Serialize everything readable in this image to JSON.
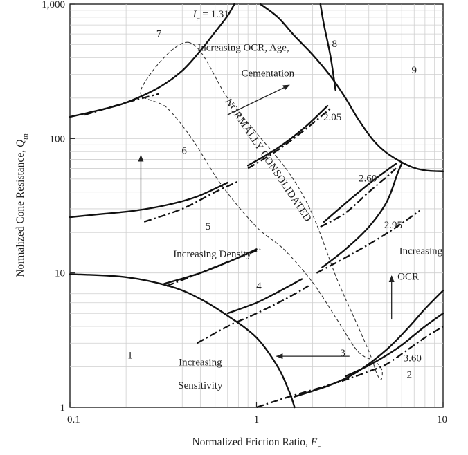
{
  "chart_data": {
    "type": "line",
    "x_scale": "log",
    "y_scale": "log",
    "xlim": [
      0.1,
      10
    ],
    "ylim": [
      1,
      1000
    ],
    "xlabel_text": "Normalized Friction Ratio, ",
    "xlabel_var": "F",
    "xlabel_sub": "r",
    "ylabel_text": "Normalized Cone Resistance, ",
    "ylabel_var": "Q",
    "ylabel_sub": "tn",
    "x_ticks": [
      {
        "value": 0.1,
        "label": "0.1"
      },
      {
        "value": 1,
        "label": "1"
      },
      {
        "value": 10,
        "label": "10"
      }
    ],
    "y_ticks": [
      {
        "value": 1,
        "label": "1"
      },
      {
        "value": 10,
        "label": "10"
      },
      {
        "value": 100,
        "label": "100"
      },
      {
        "value": 1000,
        "label": "1,000"
      }
    ],
    "zones": [
      {
        "label": "1",
        "x": 0.21,
        "y": 2.3
      },
      {
        "label": "2",
        "x": 6.6,
        "y": 1.65
      },
      {
        "label": "3",
        "x": 2.9,
        "y": 2.4
      },
      {
        "label": "4",
        "x": 1.03,
        "y": 7.6
      },
      {
        "label": "5",
        "x": 0.55,
        "y": 21
      },
      {
        "label": "6",
        "x": 0.41,
        "y": 77
      },
      {
        "label": "7",
        "x": 0.3,
        "y": 570
      },
      {
        "label": "8",
        "x": 2.62,
        "y": 480
      },
      {
        "label": "9",
        "x": 7.0,
        "y": 305
      }
    ],
    "ic_symbol": "I",
    "ic_sub": "c",
    "ic_equals": " = 1.31",
    "ic_label_pos": {
      "x": 0.57,
      "y": 800
    },
    "ic_values": [
      {
        "label": "2.05",
        "x": 2.55,
        "y": 137
      },
      {
        "label": "2.60",
        "x": 3.95,
        "y": 48
      },
      {
        "label": "2.95",
        "x": 5.4,
        "y": 21.5
      },
      {
        "label": "3.60",
        "x": 6.85,
        "y": 2.2
      }
    ],
    "annotations": [
      {
        "name": "ocr-age-line1",
        "text": "Increasing OCR, Age,",
        "x": 0.85,
        "y": 450
      },
      {
        "name": "ocr-age-line2",
        "text": "Cementation",
        "x": 1.15,
        "y": 290
      },
      {
        "name": "increasing-density",
        "text": "Increasing Density",
        "x": 0.58,
        "y": 13.1
      },
      {
        "name": "increasing-ocr-line1",
        "text": "Increasing",
        "x": 7.6,
        "y": 13.8
      },
      {
        "name": "increasing-ocr-line2",
        "text": "OCR",
        "x": 6.5,
        "y": 8.9
      },
      {
        "name": "sensitivity-line1",
        "text": "Increasing",
        "x": 0.5,
        "y": 2.05
      },
      {
        "name": "sensitivity-line2",
        "text": "Sensitivity",
        "x": 0.5,
        "y": 1.38
      }
    ],
    "normally_consolidated": {
      "text": "NORMALLY CONSOLIDATED",
      "x": 1.12,
      "y": 67,
      "angle": 56
    },
    "arrows": [
      {
        "name": "ocr-age-arrow",
        "from": [
          0.7,
          150
        ],
        "to": [
          1.5,
          250
        ]
      },
      {
        "name": "density-arrow",
        "from": [
          0.24,
          25
        ],
        "to": [
          0.24,
          75
        ]
      },
      {
        "name": "ocr-arrow",
        "from": [
          5.3,
          4.5
        ],
        "to": [
          5.3,
          9.5
        ]
      },
      {
        "name": "sensitivity-arrow",
        "from": [
          3.15,
          2.4
        ],
        "to": [
          1.28,
          2.4
        ]
      }
    ],
    "boundaries_solid": [
      {
        "name": "boundary-zone1",
        "points": [
          [
            0.1,
            9.8
          ],
          [
            0.2,
            9.3
          ],
          [
            0.35,
            7.9
          ],
          [
            0.5,
            6.4
          ],
          [
            0.7,
            4.8
          ],
          [
            1.0,
            3.3
          ],
          [
            1.3,
            2.0
          ],
          [
            1.5,
            1.3
          ],
          [
            1.6,
            1.0
          ]
        ]
      },
      {
        "name": "boundary-zone7",
        "points": [
          [
            0.1,
            145
          ],
          [
            0.15,
            165
          ],
          [
            0.2,
            185
          ],
          [
            0.3,
            240
          ],
          [
            0.4,
            320
          ],
          [
            0.5,
            450
          ],
          [
            0.6,
            620
          ],
          [
            0.7,
            820
          ],
          [
            0.76,
            1000
          ]
        ]
      },
      {
        "name": "boundary-zone9",
        "points": [
          [
            1.05,
            1000
          ],
          [
            1.3,
            800
          ],
          [
            1.6,
            580
          ],
          [
            2.0,
            420
          ],
          [
            2.5,
            290
          ],
          [
            3.0,
            200
          ],
          [
            3.5,
            140
          ],
          [
            4.2,
            98
          ],
          [
            5.0,
            78
          ],
          [
            6.5,
            63
          ],
          [
            8.0,
            58
          ],
          [
            10.0,
            57
          ]
        ]
      },
      {
        "name": "boundary-zone8",
        "points": [
          [
            2.2,
            1000
          ],
          [
            2.3,
            700
          ],
          [
            2.5,
            400
          ],
          [
            2.65,
            230
          ]
        ]
      },
      {
        "name": "boundary-zone2",
        "points": [
          [
            1.6,
            1.2
          ],
          [
            2.5,
            1.47
          ],
          [
            3.5,
            1.85
          ],
          [
            5.0,
            2.7
          ],
          [
            6.5,
            3.9
          ],
          [
            8.0,
            5.4
          ],
          [
            10.0,
            7.4
          ]
        ]
      },
      {
        "name": "ic-205-upper",
        "points": [
          [
            0.9,
            63
          ],
          [
            1.3,
            85
          ],
          [
            1.8,
            120
          ],
          [
            2.4,
            175
          ]
        ]
      },
      {
        "name": "ic-205-lower",
        "points": [
          [
            0.1,
            26
          ],
          [
            0.15,
            27.5
          ],
          [
            0.22,
            29
          ],
          [
            0.33,
            32
          ],
          [
            0.48,
            37
          ],
          [
            0.7,
            47
          ]
        ]
      },
      {
        "name": "ic-260-upper",
        "points": [
          [
            2.3,
            24
          ],
          [
            3.0,
            33
          ],
          [
            4.0,
            46
          ],
          [
            5.0,
            58
          ],
          [
            5.6,
            65
          ]
        ]
      },
      {
        "name": "ic-260-lower",
        "points": [
          [
            0.32,
            8.3
          ],
          [
            0.5,
            10
          ],
          [
            0.75,
            12.5
          ],
          [
            1.0,
            15
          ]
        ]
      },
      {
        "name": "ic-295-upper",
        "points": [
          [
            2.25,
            11
          ],
          [
            3.0,
            15
          ],
          [
            4.0,
            22
          ],
          [
            5.0,
            34
          ],
          [
            5.7,
            55
          ],
          [
            6.0,
            65
          ]
        ]
      },
      {
        "name": "ic-295-lower",
        "points": [
          [
            0.7,
            5.0
          ],
          [
            1.0,
            6.0
          ],
          [
            1.3,
            7.2
          ],
          [
            1.75,
            9.0
          ]
        ]
      },
      {
        "name": "ic-360-upper",
        "points": [
          [
            3.0,
            1.7
          ],
          [
            4.0,
            2.05
          ],
          [
            5.0,
            2.45
          ],
          [
            6.0,
            2.9
          ],
          [
            7.0,
            3.45
          ],
          [
            8.0,
            4.0
          ],
          [
            10.0,
            5.0
          ]
        ]
      }
    ],
    "boundaries_dashdot": [
      {
        "name": "ic-205-dashdot-upper",
        "points": [
          [
            0.12,
            150
          ],
          [
            0.2,
            185
          ],
          [
            0.3,
            215
          ]
        ]
      },
      {
        "name": "ic-205-dashdot-lower",
        "points": [
          [
            0.9,
            60
          ],
          [
            1.3,
            82
          ],
          [
            1.8,
            115
          ],
          [
            2.5,
            168
          ]
        ]
      },
      {
        "name": "ic-260-dashdot-upper",
        "points": [
          [
            0.25,
            24
          ],
          [
            0.4,
            30
          ],
          [
            0.6,
            40
          ],
          [
            0.8,
            48
          ]
        ]
      },
      {
        "name": "ic-260-dashdot-lower",
        "points": [
          [
            2.2,
            22
          ],
          [
            3.0,
            28
          ],
          [
            4.0,
            40
          ],
          [
            5.0,
            52
          ],
          [
            5.6,
            60
          ]
        ]
      },
      {
        "name": "ic-295-dashdot-upper",
        "points": [
          [
            0.33,
            8.0
          ],
          [
            0.5,
            10
          ],
          [
            0.8,
            13
          ],
          [
            1.05,
            15
          ]
        ]
      },
      {
        "name": "ic-295-dashdot-lower",
        "points": [
          [
            2.1,
            10
          ],
          [
            3.0,
            13
          ],
          [
            4.2,
            17
          ],
          [
            5.5,
            21.5
          ],
          [
            7.5,
            29
          ]
        ]
      },
      {
        "name": "ic-360-dashdot-upper",
        "points": [
          [
            0.48,
            3.0
          ],
          [
            0.7,
            4.0
          ],
          [
            1.0,
            5.0
          ],
          [
            1.4,
            6.3
          ],
          [
            1.9,
            8.0
          ]
        ]
      },
      {
        "name": "ic-360-dashdot-lower",
        "points": [
          [
            1.0,
            1.0
          ],
          [
            1.5,
            1.2
          ],
          [
            2.2,
            1.4
          ],
          [
            3.0,
            1.6
          ],
          [
            4.0,
            1.85
          ],
          [
            5.0,
            2.1
          ],
          [
            6.5,
            2.7
          ],
          [
            8.0,
            3.3
          ],
          [
            10.0,
            4.0
          ]
        ]
      }
    ],
    "nc_region_dashed": {
      "points": [
        [
          0.43,
          520
        ],
        [
          0.7,
          200
        ],
        [
          1.0,
          110
        ],
        [
          1.5,
          55
        ],
        [
          2.0,
          27
        ],
        [
          2.7,
          9
        ],
        [
          3.5,
          4
        ],
        [
          4.1,
          2.4
        ],
        [
          4.4,
          1.8
        ],
        [
          4.65,
          1.6
        ],
        [
          4.7,
          1.9
        ],
        [
          4.3,
          2.2
        ],
        [
          3.5,
          2.6
        ],
        [
          2.7,
          4.5
        ],
        [
          2.0,
          8.5
        ],
        [
          1.4,
          15
        ],
        [
          1.0,
          22
        ],
        [
          0.65,
          45
        ],
        [
          0.45,
          100
        ],
        [
          0.33,
          170
        ],
        [
          0.24,
          230
        ]
      ]
    }
  }
}
